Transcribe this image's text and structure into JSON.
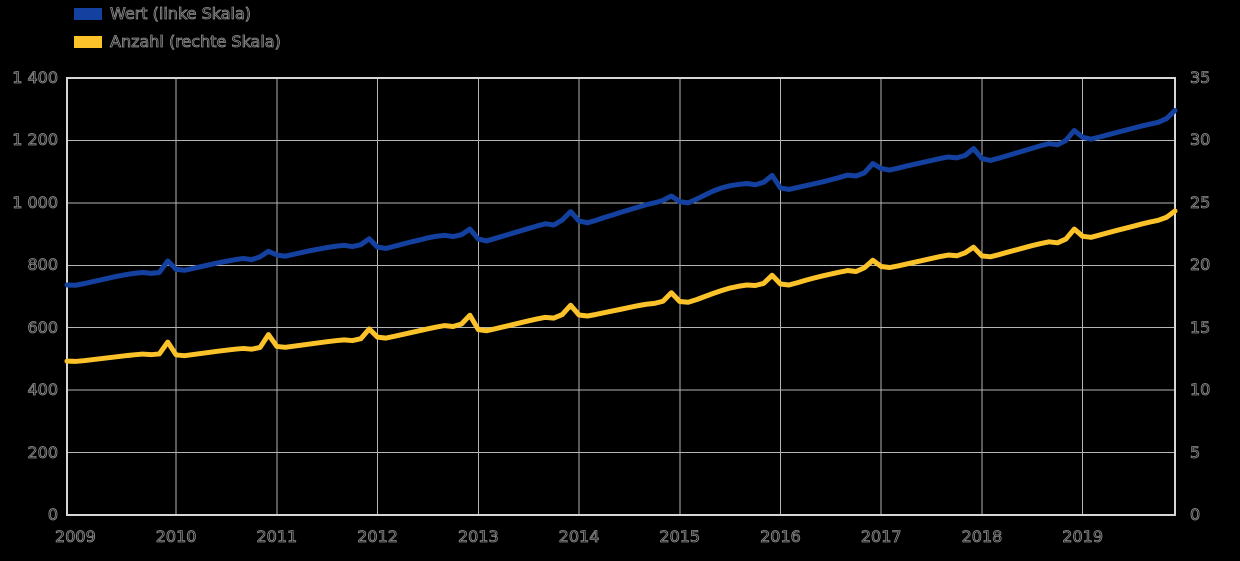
{
  "style": {
    "background": "#000000",
    "text_outline_color": "#8f8f8f",
    "grid_color": "#b5b5b5",
    "border_color": "#d6d6d6"
  },
  "legend": {
    "items": [
      {
        "label": "Wert (linke Skala)",
        "color": "#14419f"
      },
      {
        "label": "Anzahl (rechte Skala)",
        "color": "#fcc229"
      }
    ]
  },
  "chart_data": {
    "type": "line",
    "title": "",
    "xlabel": "",
    "ylabel_left": "",
    "ylabel_right": "",
    "grid": true,
    "legend_position": "top-left",
    "x_tick_years": [
      "2009",
      "2010",
      "2011",
      "2012",
      "2013",
      "2014",
      "2015",
      "2016",
      "2017",
      "2018",
      "2019"
    ],
    "x_months_before_first_year": 1,
    "points_per_year": 12,
    "axis_left": {
      "min": 0,
      "max": 1400,
      "ticks": [
        {
          "label": "1 400",
          "value": 1400
        },
        {
          "label": "1 200",
          "value": 1200
        },
        {
          "label": "1 000",
          "value": 1000
        },
        {
          "label": "800",
          "value": 800
        },
        {
          "label": "600",
          "value": 600
        },
        {
          "label": "400",
          "value": 400
        },
        {
          "label": "200",
          "value": 200
        },
        {
          "label": "0",
          "value": 0
        }
      ]
    },
    "axis_right": {
      "min": 0,
      "max": 35,
      "ticks": [
        {
          "label": "35",
          "value": 35
        },
        {
          "label": "30",
          "value": 30
        },
        {
          "label": "25",
          "value": 25
        },
        {
          "label": "20",
          "value": 20
        },
        {
          "label": "15",
          "value": 15
        },
        {
          "label": "10",
          "value": 10
        },
        {
          "label": "5",
          "value": 5
        },
        {
          "label": "0",
          "value": 0
        }
      ]
    },
    "series": [
      {
        "name": "Wert (linke Skala)",
        "axis": "left",
        "color": "#14419f",
        "start": "Dec 2008, monthly",
        "values": [
          737,
          736,
          741,
          747,
          753,
          759,
          765,
          770,
          774,
          777,
          774,
          777,
          814,
          787,
          784,
          790,
          796,
          802,
          808,
          813,
          818,
          822,
          818,
          827,
          845,
          833,
          829,
          835,
          841,
          847,
          852,
          857,
          861,
          864,
          860,
          866,
          885,
          858,
          854,
          861,
          868,
          875,
          881,
          888,
          893,
          896,
          892,
          898,
          916,
          884,
          878,
          886,
          894,
          902,
          910,
          918,
          926,
          933,
          929,
          945,
          972,
          942,
          936,
          944,
          953,
          961,
          970,
          978,
          986,
          994,
          1000,
          1008,
          1022,
          1004,
          1000,
          1012,
          1025,
          1038,
          1048,
          1055,
          1059,
          1062,
          1058,
          1066,
          1088,
          1048,
          1043,
          1049,
          1055,
          1061,
          1067,
          1074,
          1081,
          1089,
          1086,
          1096,
          1126,
          1110,
          1105,
          1111,
          1118,
          1124,
          1130,
          1136,
          1142,
          1147,
          1144,
          1152,
          1174,
          1142,
          1136,
          1143,
          1151,
          1159,
          1167,
          1175,
          1183,
          1190,
          1186,
          1200,
          1232,
          1210,
          1204,
          1211,
          1218,
          1225,
          1232,
          1239,
          1246,
          1252,
          1258,
          1270,
          1296
        ]
      },
      {
        "name": "Anzahl (rechte Skala)",
        "axis": "right",
        "color": "#fcc229",
        "start": "Dec 2008, monthly",
        "values": [
          12.32,
          12.3,
          12.36,
          12.44,
          12.52,
          12.6,
          12.68,
          12.76,
          12.83,
          12.89,
          12.84,
          12.9,
          13.85,
          12.82,
          12.76,
          12.85,
          12.94,
          13.03,
          13.12,
          13.2,
          13.28,
          13.34,
          13.28,
          13.42,
          14.45,
          13.5,
          13.43,
          13.52,
          13.61,
          13.7,
          13.79,
          13.88,
          13.96,
          14.03,
          13.97,
          14.12,
          14.9,
          14.24,
          14.17,
          14.31,
          14.46,
          14.61,
          14.76,
          14.91,
          15.05,
          15.17,
          15.1,
          15.3,
          16.0,
          14.85,
          14.76,
          14.91,
          15.07,
          15.23,
          15.39,
          15.55,
          15.7,
          15.83,
          15.77,
          16.05,
          16.8,
          16.02,
          15.94,
          16.06,
          16.2,
          16.34,
          16.48,
          16.62,
          16.76,
          16.88,
          16.95,
          17.12,
          17.8,
          17.1,
          17.04,
          17.25,
          17.5,
          17.75,
          17.98,
          18.18,
          18.32,
          18.42,
          18.38,
          18.55,
          19.2,
          18.5,
          18.42,
          18.6,
          18.8,
          18.98,
          19.15,
          19.3,
          19.45,
          19.58,
          19.5,
          19.8,
          20.4,
          19.9,
          19.82,
          19.95,
          20.1,
          20.25,
          20.4,
          20.55,
          20.7,
          20.82,
          20.76,
          21.0,
          21.45,
          20.75,
          20.68,
          20.85,
          21.04,
          21.22,
          21.4,
          21.58,
          21.74,
          21.88,
          21.8,
          22.1,
          22.9,
          22.32,
          22.24,
          22.42,
          22.6,
          22.78,
          22.95,
          23.12,
          23.3,
          23.46,
          23.6,
          23.85,
          24.35
        ]
      }
    ]
  }
}
